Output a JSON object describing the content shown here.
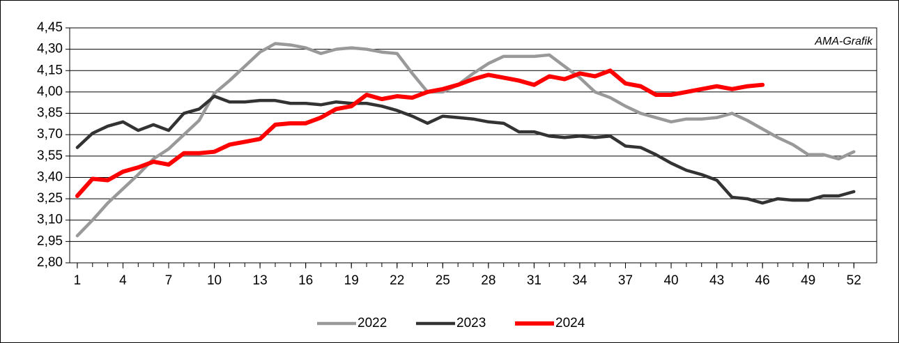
{
  "chart_data": {
    "type": "line",
    "annotation": "AMA-Grafik",
    "x": [
      1,
      2,
      3,
      4,
      5,
      6,
      7,
      8,
      9,
      10,
      11,
      12,
      13,
      14,
      15,
      16,
      17,
      18,
      19,
      20,
      21,
      22,
      23,
      24,
      25,
      26,
      27,
      28,
      29,
      30,
      31,
      32,
      33,
      34,
      35,
      36,
      37,
      38,
      39,
      40,
      41,
      42,
      43,
      44,
      45,
      46,
      47,
      48,
      49,
      50,
      51,
      52
    ],
    "xlim": [
      0.5,
      53.5
    ],
    "xticks": [
      1,
      4,
      7,
      10,
      13,
      16,
      19,
      22,
      25,
      28,
      31,
      34,
      37,
      40,
      43,
      46,
      49,
      52
    ],
    "ylim": [
      2.8,
      4.45
    ],
    "yticks": [
      {
        "value": 2.8,
        "label": "2,80"
      },
      {
        "value": 2.95,
        "label": "2,95"
      },
      {
        "value": 3.1,
        "label": "3,10"
      },
      {
        "value": 3.25,
        "label": "3,25"
      },
      {
        "value": 3.4,
        "label": "3,40"
      },
      {
        "value": 3.55,
        "label": "3,55"
      },
      {
        "value": 3.7,
        "label": "3,70"
      },
      {
        "value": 3.85,
        "label": "3,85"
      },
      {
        "value": 4.0,
        "label": "4,00"
      },
      {
        "value": 4.15,
        "label": "4,15"
      },
      {
        "value": 4.3,
        "label": "4,30"
      },
      {
        "value": 4.45,
        "label": "4,45"
      }
    ],
    "grid": true,
    "legend": "bottom",
    "series": [
      {
        "name": "2022",
        "color": "#999999",
        "values": [
          2.99,
          3.1,
          3.22,
          3.32,
          3.42,
          3.53,
          3.6,
          3.7,
          3.8,
          3.99,
          4.08,
          4.18,
          4.28,
          4.34,
          4.33,
          4.31,
          4.27,
          4.3,
          4.31,
          4.3,
          4.28,
          4.27,
          4.13,
          4.0,
          4.0,
          4.05,
          4.13,
          4.2,
          4.25,
          4.25,
          4.25,
          4.26,
          4.18,
          4.1,
          4.0,
          3.96,
          3.9,
          3.85,
          3.82,
          3.79,
          3.81,
          3.81,
          3.82,
          3.85,
          3.8,
          3.74,
          3.68,
          3.63,
          3.56,
          3.56,
          3.53,
          3.58
        ]
      },
      {
        "name": "2023",
        "color": "#333333",
        "values": [
          3.61,
          3.71,
          3.76,
          3.79,
          3.73,
          3.77,
          3.73,
          3.85,
          3.88,
          3.97,
          3.93,
          3.93,
          3.94,
          3.94,
          3.92,
          3.92,
          3.91,
          3.93,
          3.92,
          3.92,
          3.9,
          3.87,
          3.83,
          3.78,
          3.83,
          3.82,
          3.81,
          3.79,
          3.78,
          3.72,
          3.72,
          3.69,
          3.68,
          3.69,
          3.68,
          3.69,
          3.62,
          3.61,
          3.56,
          3.5,
          3.45,
          3.42,
          3.38,
          3.26,
          3.25,
          3.22,
          3.25,
          3.24,
          3.24,
          3.27,
          3.27,
          3.3
        ]
      },
      {
        "name": "2024",
        "color": "#ff0000",
        "values": [
          3.27,
          3.39,
          3.38,
          3.44,
          3.47,
          3.51,
          3.49,
          3.57,
          3.57,
          3.58,
          3.63,
          3.65,
          3.67,
          3.77,
          3.78,
          3.78,
          3.82,
          3.88,
          3.9,
          3.98,
          3.95,
          3.97,
          3.96,
          4.0,
          4.02,
          4.05,
          4.09,
          4.12,
          4.1,
          4.08,
          4.05,
          4.11,
          4.09,
          4.13,
          4.11,
          4.15,
          4.06,
          4.04,
          3.98,
          3.98,
          4.0,
          4.02,
          4.04,
          4.02,
          4.04,
          4.05,
          null,
          null,
          null,
          null,
          null,
          null
        ]
      }
    ]
  }
}
